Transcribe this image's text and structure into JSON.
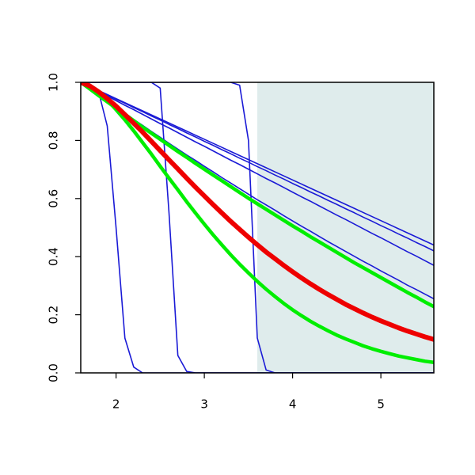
{
  "chart_data": {
    "type": "line",
    "x": [
      1.6,
      1.7,
      1.8,
      1.9,
      2.0,
      2.1,
      2.2,
      2.3,
      2.4,
      2.5,
      2.6,
      2.7,
      2.8,
      2.9,
      3.0,
      3.1,
      3.2,
      3.3,
      3.4,
      3.5,
      3.6,
      3.7,
      3.8,
      3.9,
      4.0,
      4.1,
      4.2,
      4.3,
      4.4,
      4.5,
      4.6,
      4.7,
      4.8,
      4.9,
      5.0,
      5.1,
      5.2,
      5.3,
      5.4,
      5.5,
      5.6
    ],
    "xlim": [
      1.6,
      5.6
    ],
    "ylim": [
      0,
      1
    ],
    "xticks": [
      2,
      3,
      4,
      5
    ],
    "yticks": [
      {
        "value": 0,
        "label": "0.0"
      },
      {
        "value": 0.2,
        "label": "0.2"
      },
      {
        "value": 0.4,
        "label": "0.4"
      },
      {
        "value": 0.6,
        "label": "0.6"
      },
      {
        "value": 0.8,
        "label": "0.8"
      },
      {
        "value": 1,
        "label": "1.0"
      }
    ],
    "shaded_region": {
      "xlim": [
        3.6,
        5.6
      ],
      "color": "#dfecec"
    },
    "series": [
      {
        "color": "#1a1ad6",
        "values": [
          1,
          0.995,
          0.97,
          0.85,
          0.5,
          0.12,
          0.02,
          0,
          0,
          0,
          0,
          0,
          0,
          0,
          0,
          0,
          0,
          0,
          0,
          0,
          0,
          0,
          0,
          0,
          0,
          0,
          0,
          0,
          0,
          0,
          0,
          0,
          0,
          0,
          0,
          0,
          0,
          0,
          0,
          0,
          0
        ]
      },
      {
        "color": "#1a1ad6",
        "values": [
          1,
          1,
          1,
          1,
          1,
          1,
          1,
          1,
          1,
          0.98,
          0.55,
          0.06,
          0.005,
          0,
          0,
          0,
          0,
          0,
          0,
          0,
          0,
          0,
          0,
          0,
          0,
          0,
          0,
          0,
          0,
          0,
          0,
          0,
          0,
          0,
          0,
          0,
          0,
          0,
          0,
          0,
          0
        ]
      },
      {
        "color": "#1a1ad6",
        "values": [
          1,
          1,
          1,
          1,
          1,
          1,
          1,
          1,
          1,
          1,
          1,
          1,
          1,
          1,
          1,
          1,
          1,
          1,
          0.99,
          0.8,
          0.12,
          0.01,
          0,
          0,
          0,
          0,
          0,
          0,
          0,
          0,
          0,
          0,
          0,
          0,
          0,
          0,
          0,
          0,
          0,
          0,
          0
        ]
      },
      {
        "color": "#1a1ad6",
        "values": [
          1,
          0.986,
          0.972,
          0.958,
          0.944,
          0.93,
          0.916,
          0.902,
          0.888,
          0.874,
          0.86,
          0.846,
          0.832,
          0.818,
          0.804,
          0.79,
          0.776,
          0.762,
          0.748,
          0.734,
          0.72,
          0.706,
          0.692,
          0.678,
          0.664,
          0.65,
          0.636,
          0.622,
          0.608,
          0.594,
          0.58,
          0.566,
          0.552,
          0.538,
          0.524,
          0.51,
          0.496,
          0.482,
          0.468,
          0.454,
          0.44
        ]
      },
      {
        "color": "#1a1ad6",
        "values": [
          1,
          0.986,
          0.971,
          0.957,
          0.942,
          0.928,
          0.913,
          0.899,
          0.884,
          0.87,
          0.855,
          0.841,
          0.826,
          0.812,
          0.797,
          0.783,
          0.768,
          0.754,
          0.739,
          0.725,
          0.71,
          0.696,
          0.681,
          0.667,
          0.652,
          0.638,
          0.623,
          0.609,
          0.594,
          0.58,
          0.565,
          0.551,
          0.536,
          0.522,
          0.507,
          0.493,
          0.478,
          0.464,
          0.449,
          0.435,
          0.42
        ]
      },
      {
        "color": "#1a1ad6",
        "values": [
          1,
          0.984,
          0.969,
          0.953,
          0.937,
          0.921,
          0.906,
          0.89,
          0.874,
          0.858,
          0.843,
          0.827,
          0.811,
          0.795,
          0.78,
          0.764,
          0.748,
          0.732,
          0.717,
          0.701,
          0.685,
          0.669,
          0.654,
          0.638,
          0.622,
          0.606,
          0.591,
          0.575,
          0.559,
          0.543,
          0.528,
          0.512,
          0.496,
          0.48,
          0.465,
          0.449,
          0.433,
          0.417,
          0.402,
          0.386,
          0.37
        ]
      },
      {
        "color": "#1a1ad6",
        "values": [
          1,
          0.978,
          0.957,
          0.935,
          0.914,
          0.893,
          0.872,
          0.852,
          0.831,
          0.811,
          0.79,
          0.77,
          0.75,
          0.731,
          0.711,
          0.692,
          0.672,
          0.653,
          0.634,
          0.615,
          0.596,
          0.578,
          0.56,
          0.541,
          0.523,
          0.505,
          0.488,
          0.47,
          0.452,
          0.435,
          0.418,
          0.401,
          0.384,
          0.368,
          0.351,
          0.335,
          0.319,
          0.302,
          0.287,
          0.271,
          0.255
        ]
      },
      {
        "color": "#00ee00",
        "values": [
          1,
          0.978,
          0.955,
          0.933,
          0.911,
          0.89,
          0.868,
          0.846,
          0.825,
          0.804,
          0.783,
          0.762,
          0.742,
          0.721,
          0.701,
          0.681,
          0.661,
          0.641,
          0.621,
          0.601,
          0.582,
          0.563,
          0.544,
          0.525,
          0.506,
          0.488,
          0.469,
          0.451,
          0.433,
          0.415,
          0.397,
          0.379,
          0.362,
          0.345,
          0.328,
          0.311,
          0.294,
          0.277,
          0.261,
          0.244,
          0.228
        ]
      },
      {
        "color": "#00ee00",
        "values": [
          1,
          0.988,
          0.966,
          0.939,
          0.906,
          0.871,
          0.833,
          0.793,
          0.753,
          0.711,
          0.67,
          0.63,
          0.589,
          0.55,
          0.512,
          0.475,
          0.44,
          0.406,
          0.374,
          0.344,
          0.315,
          0.288,
          0.263,
          0.239,
          0.217,
          0.197,
          0.178,
          0.161,
          0.145,
          0.13,
          0.117,
          0.105,
          0.093,
          0.083,
          0.074,
          0.066,
          0.058,
          0.052,
          0.046,
          0.04,
          0.036
        ]
      },
      {
        "color": "#ee0000",
        "values": [
          1,
          0.988,
          0.968,
          0.944,
          0.918,
          0.889,
          0.859,
          0.829,
          0.797,
          0.765,
          0.733,
          0.702,
          0.67,
          0.639,
          0.609,
          0.579,
          0.55,
          0.521,
          0.494,
          0.467,
          0.441,
          0.416,
          0.393,
          0.37,
          0.348,
          0.327,
          0.307,
          0.288,
          0.27,
          0.253,
          0.236,
          0.221,
          0.206,
          0.192,
          0.179,
          0.167,
          0.155,
          0.144,
          0.134,
          0.124,
          0.115
        ]
      }
    ]
  }
}
